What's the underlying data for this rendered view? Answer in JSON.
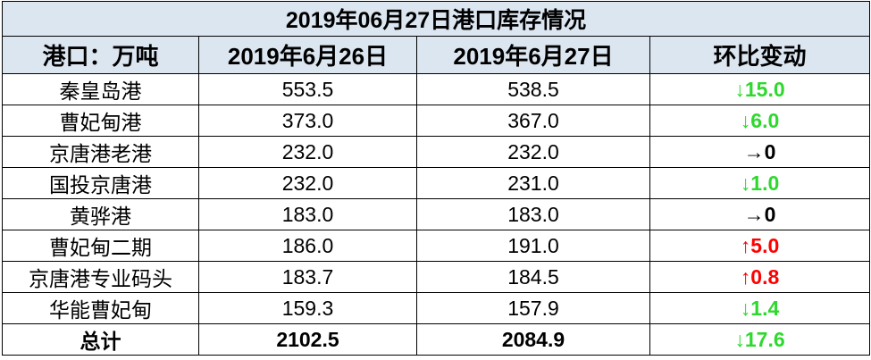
{
  "table": {
    "title": "2019年06月27日港口库存情况",
    "header": [
      "港口：万吨",
      "2019年6月26日",
      "2019年6月27日",
      "环比变动"
    ],
    "rows": [
      [
        "秦皇岛港",
        "553.5",
        "538.5",
        "↓15.0"
      ],
      [
        "曹妃甸港",
        "373.0",
        "367.0",
        "↓6.0"
      ],
      [
        "京唐港老港",
        "232.0",
        "232.0",
        "→0"
      ],
      [
        "国投京唐港",
        "232.0",
        "231.0",
        "↓1.0"
      ],
      [
        "黄骅港",
        "183.0",
        "183.0",
        "→0"
      ],
      [
        "曹妃甸二期",
        "186.0",
        "191.0",
        "↑5.0"
      ],
      [
        "京唐港专业码头",
        "183.7",
        "184.5",
        "↑0.8"
      ],
      [
        "华能曹妃甸",
        "159.3",
        "157.9",
        "↓1.4"
      ]
    ],
    "total": [
      "总计",
      "2102.5",
      "2084.9",
      "↓17.6"
    ],
    "change_colors": [
      "#2ed82e",
      "#2ed82e",
      "#000000",
      "#2ed82e",
      "#000000",
      "#ff0000",
      "#ff0000",
      "#2ed82e"
    ],
    "total_change_color": "#2ed82e"
  }
}
